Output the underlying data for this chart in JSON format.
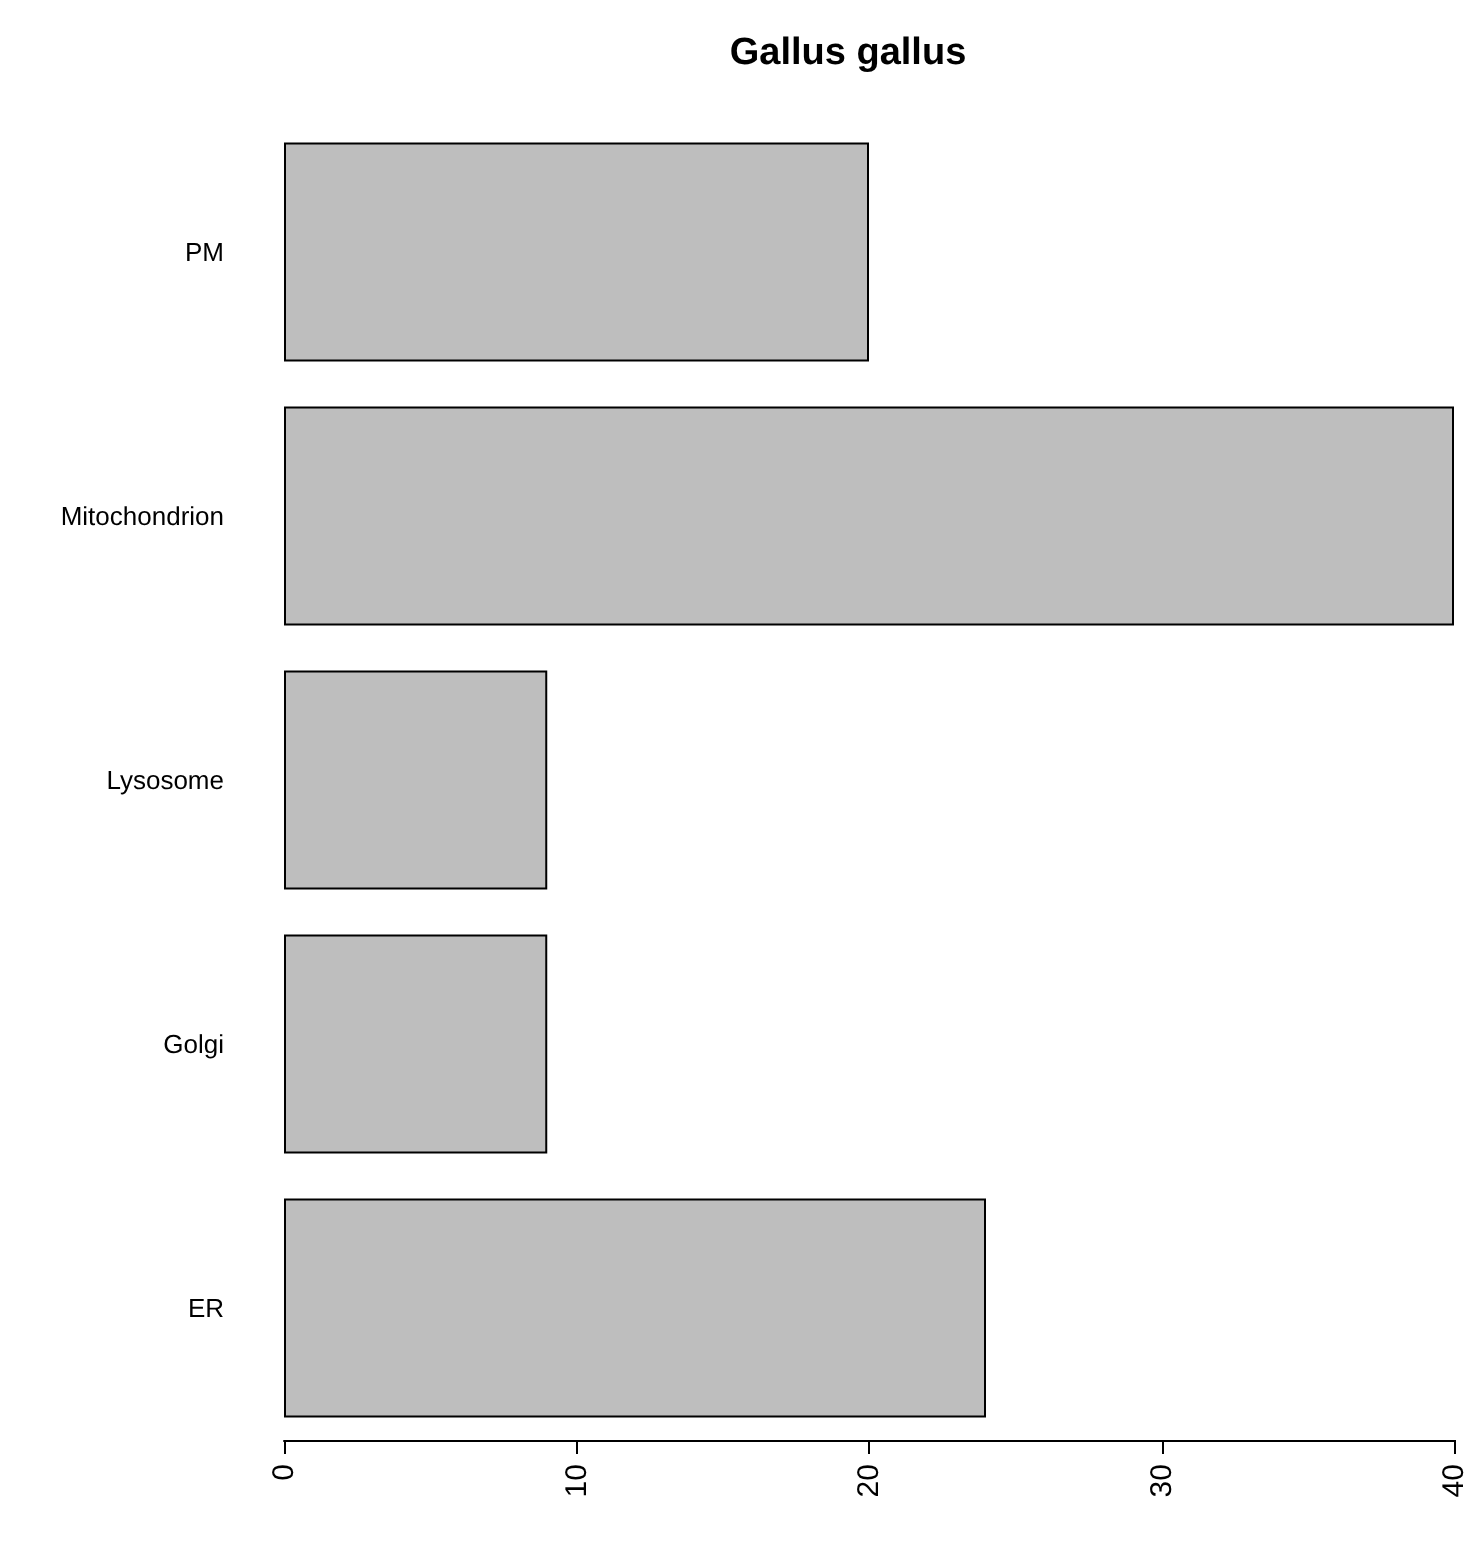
{
  "chart_data": {
    "type": "bar",
    "title": "Gallus gallus",
    "orientation": "horizontal",
    "categories": [
      "PM",
      "Mitochondrion",
      "Lysosome",
      "Golgi",
      "ER"
    ],
    "values": [
      20,
      40,
      9,
      9,
      24
    ],
    "color": "#bebebe",
    "xlim": [
      0,
      40
    ],
    "xticks": [
      0,
      10,
      20,
      30,
      40
    ],
    "grid": false
  }
}
